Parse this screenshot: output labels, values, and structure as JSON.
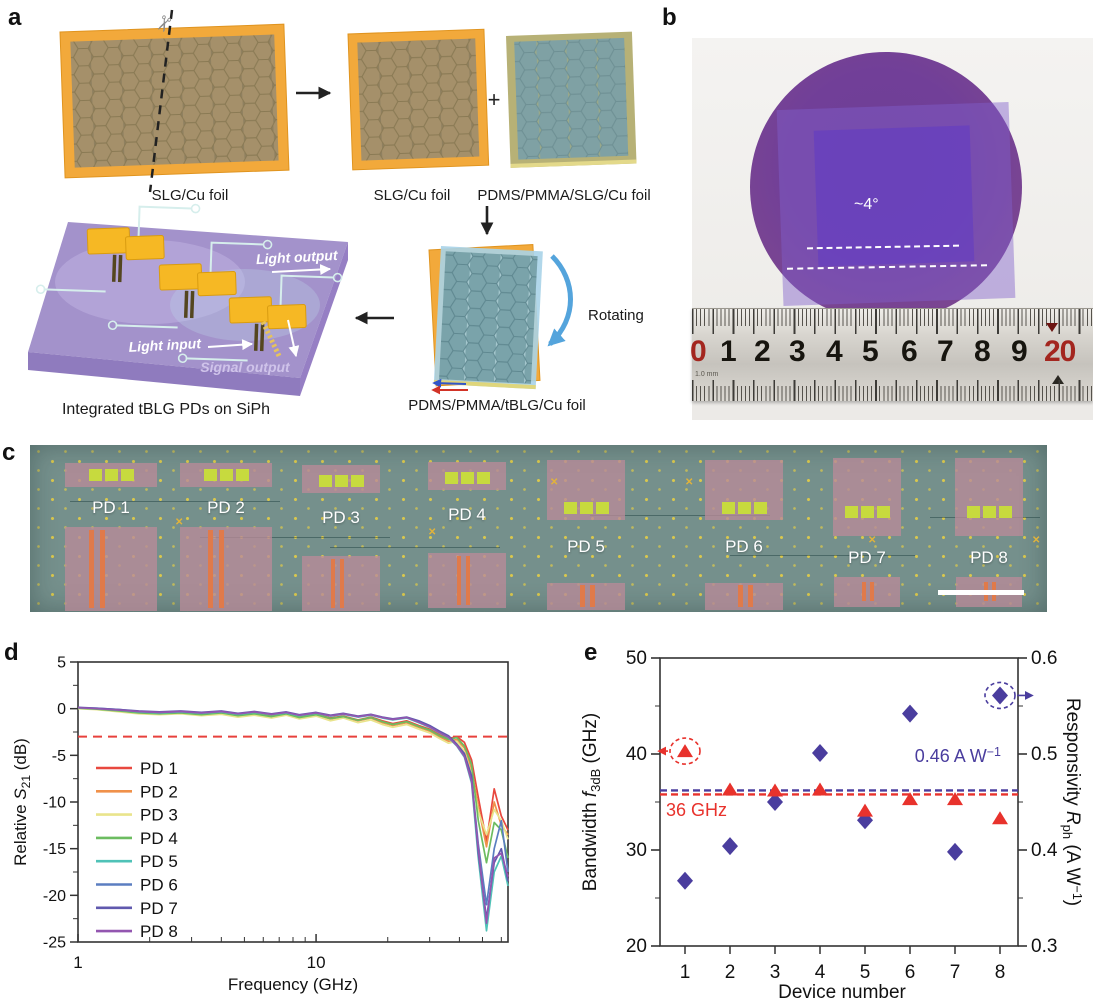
{
  "figure": {
    "panel_letters": {
      "a": "a",
      "b": "b",
      "c": "c",
      "d": "d",
      "e": "e"
    }
  },
  "panels": {
    "a": {
      "caption_slg_left": "SLG/Cu foil",
      "caption_slg_mid": "SLG/Cu foil",
      "caption_pdms": "PDMS/PMMA/SLG/Cu foil",
      "plus": "+",
      "rotating": "Rotating",
      "caption_tblg": "PDMS/PMMA/tBLG/Cu foil",
      "caption_chip": "Integrated tBLG PDs on SiPh",
      "light_output": "Light output",
      "light_input": "Light input",
      "signal_output": "Signal output",
      "colors": {
        "cu_foil": "#F2A93B",
        "graphene": "#A5906A",
        "pdms_film": "#B7B176",
        "tblg_hex": "#7FA1A4",
        "pmma_sheet": "#A9D3E8",
        "chip": "#A392CB",
        "gold": "#F6B824",
        "waveguide": "#D6EEEC"
      }
    },
    "b": {
      "angle_label": "~4°",
      "ruler_numbers": [
        "0",
        "1",
        "2",
        "3",
        "4",
        "5",
        "6",
        "7",
        "8",
        "9",
        "20"
      ],
      "ruler_unit": "1.0 mm"
    },
    "c": {
      "pd_labels": [
        "PD 1",
        "PD 2",
        "PD 3",
        "PD 4",
        "PD 5",
        "PD 6",
        "PD 7",
        "PD 8"
      ]
    }
  },
  "chart_data": [
    {
      "panel": "d",
      "type": "line",
      "xscale": "log",
      "xlabel": "Frequency (GHz)",
      "ylabel_parts": [
        "Relative ",
        "S",
        "21",
        " (dB)"
      ],
      "xlim": [
        1,
        64
      ],
      "ylim": [
        -25,
        5
      ],
      "yticks": [
        5,
        0,
        -5,
        -10,
        -15,
        -20,
        -25
      ],
      "xticks_labeled": [
        1,
        10
      ],
      "ref_line_db": -3,
      "ref_color": "#E8413C",
      "legend_position": "lower-left-inside",
      "x": [
        1,
        1.2,
        1.5,
        1.8,
        2.2,
        2.7,
        3.3,
        4,
        4.7,
        5.5,
        6.5,
        7.5,
        8.5,
        10,
        11.5,
        13,
        15,
        17,
        19,
        21,
        24,
        27,
        30,
        33,
        36,
        39,
        42,
        45,
        48,
        52,
        56,
        60,
        64
      ],
      "series": [
        {
          "name": "PD 1",
          "color": "#E8483F",
          "values": [
            0.1,
            0,
            -0.2,
            -0.4,
            -0.5,
            -0.4,
            -0.6,
            -0.4,
            -0.7,
            -0.5,
            -0.8,
            -0.5,
            -0.9,
            -0.6,
            -1.0,
            -0.8,
            -1.2,
            -0.9,
            -1.3,
            -1.6,
            -1.3,
            -1.8,
            -2.2,
            -2.8,
            -3.2,
            -3.0,
            -3.6,
            -5.5,
            -9.5,
            -14.2,
            -8.6,
            -11.5,
            -13.0
          ]
        },
        {
          "name": "PD 2",
          "color": "#F0914A",
          "values": [
            0.05,
            -0.05,
            -0.3,
            -0.5,
            -0.6,
            -0.5,
            -0.7,
            -0.5,
            -0.8,
            -0.6,
            -0.9,
            -0.6,
            -1.0,
            -0.7,
            -1.1,
            -0.9,
            -1.3,
            -1.0,
            -1.5,
            -1.8,
            -1.5,
            -2.0,
            -2.4,
            -3.0,
            -3.5,
            -3.3,
            -4.2,
            -6.5,
            -10.5,
            -14.8,
            -10.0,
            -12.5,
            -13.5
          ]
        },
        {
          "name": "PD 3",
          "color": "#E9E48C",
          "values": [
            0,
            -0.1,
            -0.35,
            -0.55,
            -0.65,
            -0.55,
            -0.75,
            -0.6,
            -0.9,
            -0.7,
            -1.0,
            -0.7,
            -1.1,
            -0.8,
            -1.3,
            -1.0,
            -1.5,
            -1.2,
            -1.7,
            -2.0,
            -1.7,
            -2.2,
            -2.6,
            -3.2,
            -3.7,
            -3.5,
            -4.6,
            -7.0,
            -11.0,
            -13.5,
            -10.8,
            -12.0,
            -14.0
          ]
        },
        {
          "name": "PD 4",
          "color": "#6CBC60",
          "values": [
            0.05,
            -0.05,
            -0.25,
            -0.45,
            -0.55,
            -0.45,
            -0.65,
            -0.45,
            -0.75,
            -0.55,
            -0.85,
            -0.55,
            -0.95,
            -0.65,
            -1.05,
            -0.85,
            -1.25,
            -0.95,
            -1.4,
            -1.7,
            -1.4,
            -1.9,
            -2.3,
            -2.9,
            -3.3,
            -3.1,
            -4.0,
            -6.0,
            -12.0,
            -16.5,
            -12.2,
            -13.0,
            -16.0
          ]
        },
        {
          "name": "PD 5",
          "color": "#4FC2B7",
          "values": [
            0.1,
            0,
            -0.15,
            -0.35,
            -0.45,
            -0.35,
            -0.5,
            -0.35,
            -0.6,
            -0.4,
            -0.65,
            -0.45,
            -0.75,
            -0.5,
            -0.8,
            -0.6,
            -0.9,
            -0.7,
            -1.0,
            -1.2,
            -1.0,
            -1.5,
            -2.0,
            -2.6,
            -3.1,
            -4.0,
            -5.2,
            -8.0,
            -16.0,
            -23.8,
            -17.5,
            -15.8,
            -19.0
          ]
        },
        {
          "name": "PD 6",
          "color": "#5B7EC1",
          "values": [
            0.1,
            0.05,
            -0.1,
            -0.3,
            -0.4,
            -0.3,
            -0.45,
            -0.3,
            -0.55,
            -0.35,
            -0.6,
            -0.4,
            -0.7,
            -0.45,
            -0.75,
            -0.55,
            -0.85,
            -0.65,
            -0.95,
            -1.15,
            -0.95,
            -1.4,
            -1.9,
            -2.5,
            -3.0,
            -3.9,
            -5.0,
            -7.5,
            -14.5,
            -21.0,
            -15.0,
            -12.0,
            -17.5
          ]
        },
        {
          "name": "PD 7",
          "color": "#6059AE",
          "values": [
            0.15,
            0.05,
            -0.1,
            -0.25,
            -0.35,
            -0.25,
            -0.4,
            -0.25,
            -0.5,
            -0.3,
            -0.55,
            -0.35,
            -0.65,
            -0.4,
            -0.7,
            -0.5,
            -0.8,
            -0.6,
            -0.9,
            -1.1,
            -0.9,
            -1.3,
            -1.8,
            -2.4,
            -2.9,
            -3.8,
            -4.8,
            -7.2,
            -15.5,
            -22.5,
            -16.5,
            -15.0,
            -18.5
          ]
        },
        {
          "name": "PD 8",
          "color": "#9356B0",
          "values": [
            0.1,
            0,
            -0.15,
            -0.3,
            -0.4,
            -0.3,
            -0.45,
            -0.3,
            -0.55,
            -0.35,
            -0.6,
            -0.4,
            -0.7,
            -0.45,
            -0.75,
            -0.55,
            -0.85,
            -0.65,
            -0.95,
            -1.15,
            -0.95,
            -1.45,
            -1.95,
            -2.55,
            -3.05,
            -3.95,
            -5.1,
            -7.8,
            -15.0,
            -23.0,
            -16.0,
            -15.5,
            -18.0
          ]
        }
      ]
    },
    {
      "panel": "e",
      "type": "scatter",
      "xlabel": "Device number",
      "ylabel_left_parts": [
        "Bandwidth ",
        "f",
        "3dB",
        " (GHz)"
      ],
      "ylabel_right_parts": [
        "Responsivity ",
        "R",
        "ph",
        " (A W",
        "−1",
        ")"
      ],
      "devices": [
        1,
        2,
        3,
        4,
        5,
        6,
        7,
        8
      ],
      "bandwidth_GHz": [
        40.2,
        36.2,
        36.1,
        36.2,
        34.0,
        35.2,
        35.2,
        33.2
      ],
      "responsivity_AW": [
        0.368,
        0.404,
        0.45,
        0.501,
        0.431,
        0.542,
        0.398,
        0.561
      ],
      "ylim_left": [
        20,
        50
      ],
      "ylim_right": [
        0.3,
        0.6
      ],
      "yticks_left": [
        50,
        40,
        30,
        20
      ],
      "yticks_right": [
        0.6,
        0.5,
        0.4,
        0.3
      ],
      "mean_bandwidth": 36,
      "mean_bandwidth_label": "36 GHz",
      "mean_responsivity": 0.46,
      "mean_responsivity_label_parts": [
        "0.46 A W",
        "−1"
      ],
      "bandwidth_color": "#E8322C",
      "responsivity_color": "#4A3D9E",
      "highlight": {
        "bandwidth_device": 1,
        "responsivity_device": 8
      }
    }
  ]
}
